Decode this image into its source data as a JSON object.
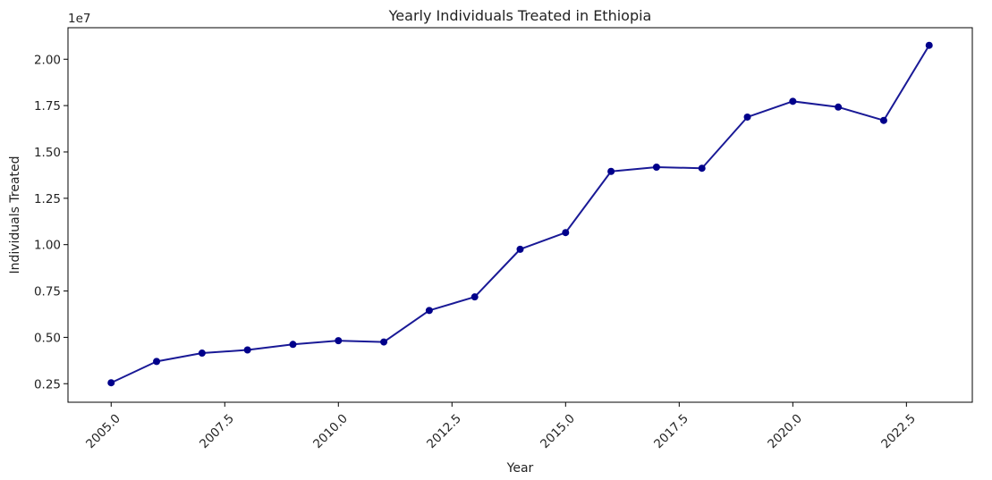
{
  "chart_data": {
    "type": "line",
    "title": "Yearly Individuals Treated in Ethiopia",
    "xlabel": "Year",
    "ylabel": "Individuals Treated",
    "y_offset_label": "1e7",
    "x_ticks": [
      "2005.0",
      "2007.5",
      "2010.0",
      "2012.5",
      "2015.0",
      "2017.5",
      "2020.0",
      "2022.5"
    ],
    "y_ticks": [
      "0.25",
      "0.50",
      "0.75",
      "1.00",
      "1.25",
      "1.50",
      "1.75",
      "2.00"
    ],
    "xlim": [
      2004.05,
      2023.95
    ],
    "ylim": [
      1500000,
      21700000
    ],
    "grid": false,
    "color": "#00008b",
    "marker": "circle",
    "series": [
      {
        "x": [
          2005,
          2006,
          2007,
          2008,
          2009,
          2010,
          2011,
          2012,
          2013,
          2014,
          2015,
          2016,
          2017,
          2018,
          2019,
          2020,
          2021,
          2022,
          2023
        ],
        "values": [
          2550000,
          3700000,
          4150000,
          4320000,
          4620000,
          4820000,
          4750000,
          6450000,
          7180000,
          9750000,
          10650000,
          13950000,
          14180000,
          14120000,
          16880000,
          17730000,
          17420000,
          16700000,
          20750000
        ]
      }
    ]
  }
}
